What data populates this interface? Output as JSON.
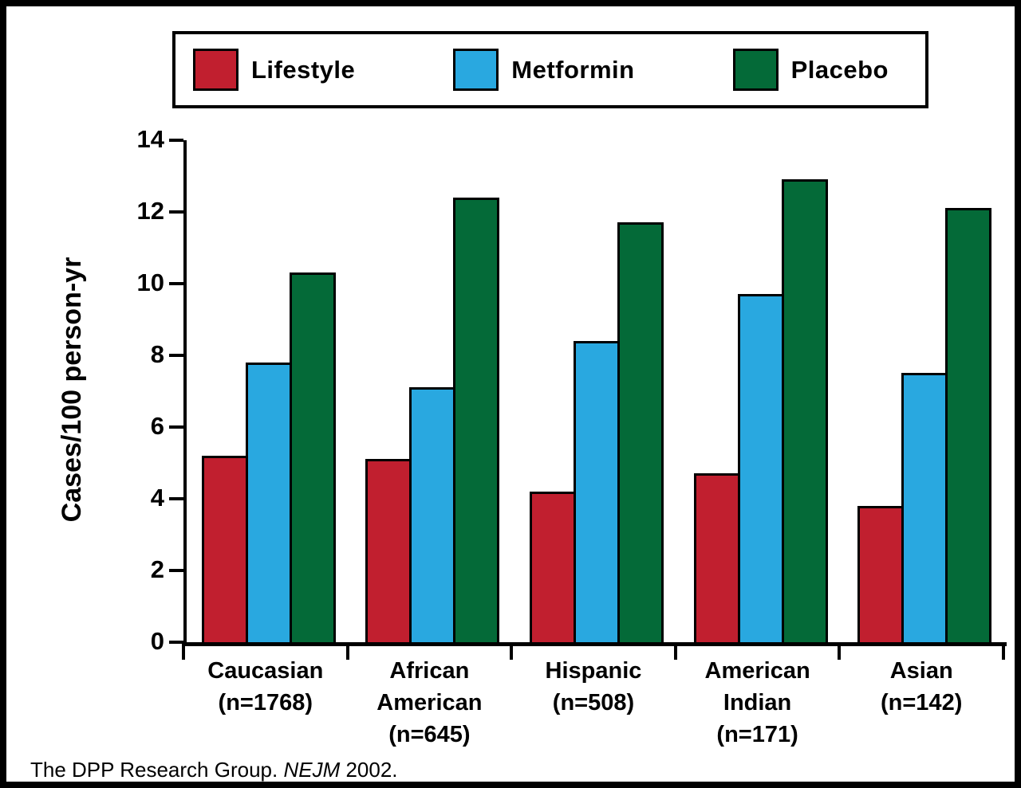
{
  "footer": {
    "prefix": "The DPP Research Group. ",
    "journal": "NEJM",
    "suffix": " 2002."
  },
  "chart_data": {
    "type": "bar",
    "title": "",
    "ylabel": "Cases/100 person-yr",
    "xlabel": "",
    "ylim": [
      0,
      14
    ],
    "yticks": [
      0,
      2,
      4,
      6,
      8,
      10,
      12,
      14
    ],
    "grid": false,
    "legend_position": "top",
    "categories": [
      {
        "name": "Caucasian",
        "n": 1768,
        "lines": [
          "Caucasian",
          "(n=1768)"
        ]
      },
      {
        "name": "African American",
        "n": 645,
        "lines": [
          "African",
          "American",
          "(n=645)"
        ]
      },
      {
        "name": "Hispanic",
        "n": 508,
        "lines": [
          "Hispanic",
          "(n=508)"
        ]
      },
      {
        "name": "American Indian",
        "n": 171,
        "lines": [
          "American",
          "Indian",
          "(n=171)"
        ]
      },
      {
        "name": "Asian",
        "n": 142,
        "lines": [
          "Asian",
          "(n=142)"
        ]
      }
    ],
    "series": [
      {
        "name": "Lifestyle",
        "color": "#C11F2F",
        "values": [
          5.2,
          5.1,
          4.2,
          4.7,
          3.8
        ]
      },
      {
        "name": "Metformin",
        "color": "#29A8E0",
        "values": [
          7.8,
          7.1,
          8.4,
          9.7,
          7.5
        ]
      },
      {
        "name": "Placebo",
        "color": "#046A38",
        "values": [
          10.3,
          12.4,
          11.7,
          12.9,
          12.1
        ]
      }
    ]
  }
}
